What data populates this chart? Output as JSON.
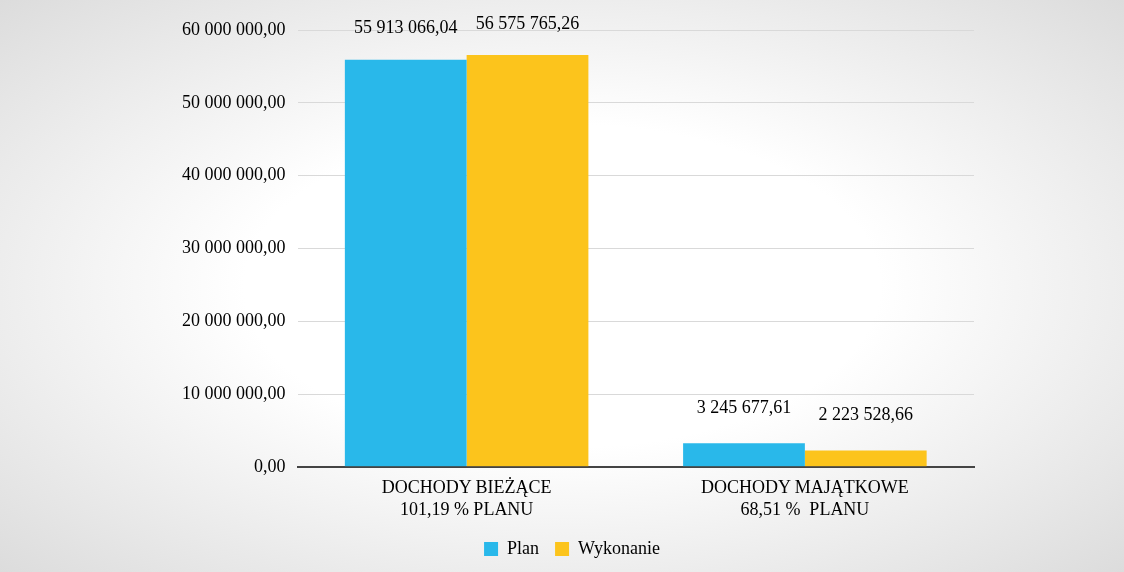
{
  "chart_data": {
    "type": "bar",
    "categories": [
      "DOCHODY BIEŻĄCE\n101,19 % PLANU",
      "DOCHODY MAJĄTKOWE\n68,51 %  PLANU"
    ],
    "series": [
      {
        "name": "Plan",
        "color": "#29b8ea",
        "values": [
          55913066.04,
          3245677.61
        ],
        "value_labels": [
          "55 913 066,04",
          "3 245 677,61"
        ]
      },
      {
        "name": "Wykonanie",
        "color": "#fcc41c",
        "values": [
          56575765.26,
          2223528.66
        ],
        "value_labels": [
          "56 575 765,26",
          "2 223 528,66"
        ]
      }
    ],
    "ylim": [
      0,
      60000000
    ],
    "yticks": [
      {
        "value": 0,
        "label": "0,00"
      },
      {
        "value": 10000000,
        "label": "10 000 000,00"
      },
      {
        "value": 20000000,
        "label": "20 000 000,00"
      },
      {
        "value": 30000000,
        "label": "30 000 000,00"
      },
      {
        "value": 40000000,
        "label": "40 000 000,00"
      },
      {
        "value": 50000000,
        "label": "50 000 000,00"
      },
      {
        "value": 60000000,
        "label": "60 000 000,00"
      }
    ],
    "grid": "y",
    "legend": "bottom"
  }
}
